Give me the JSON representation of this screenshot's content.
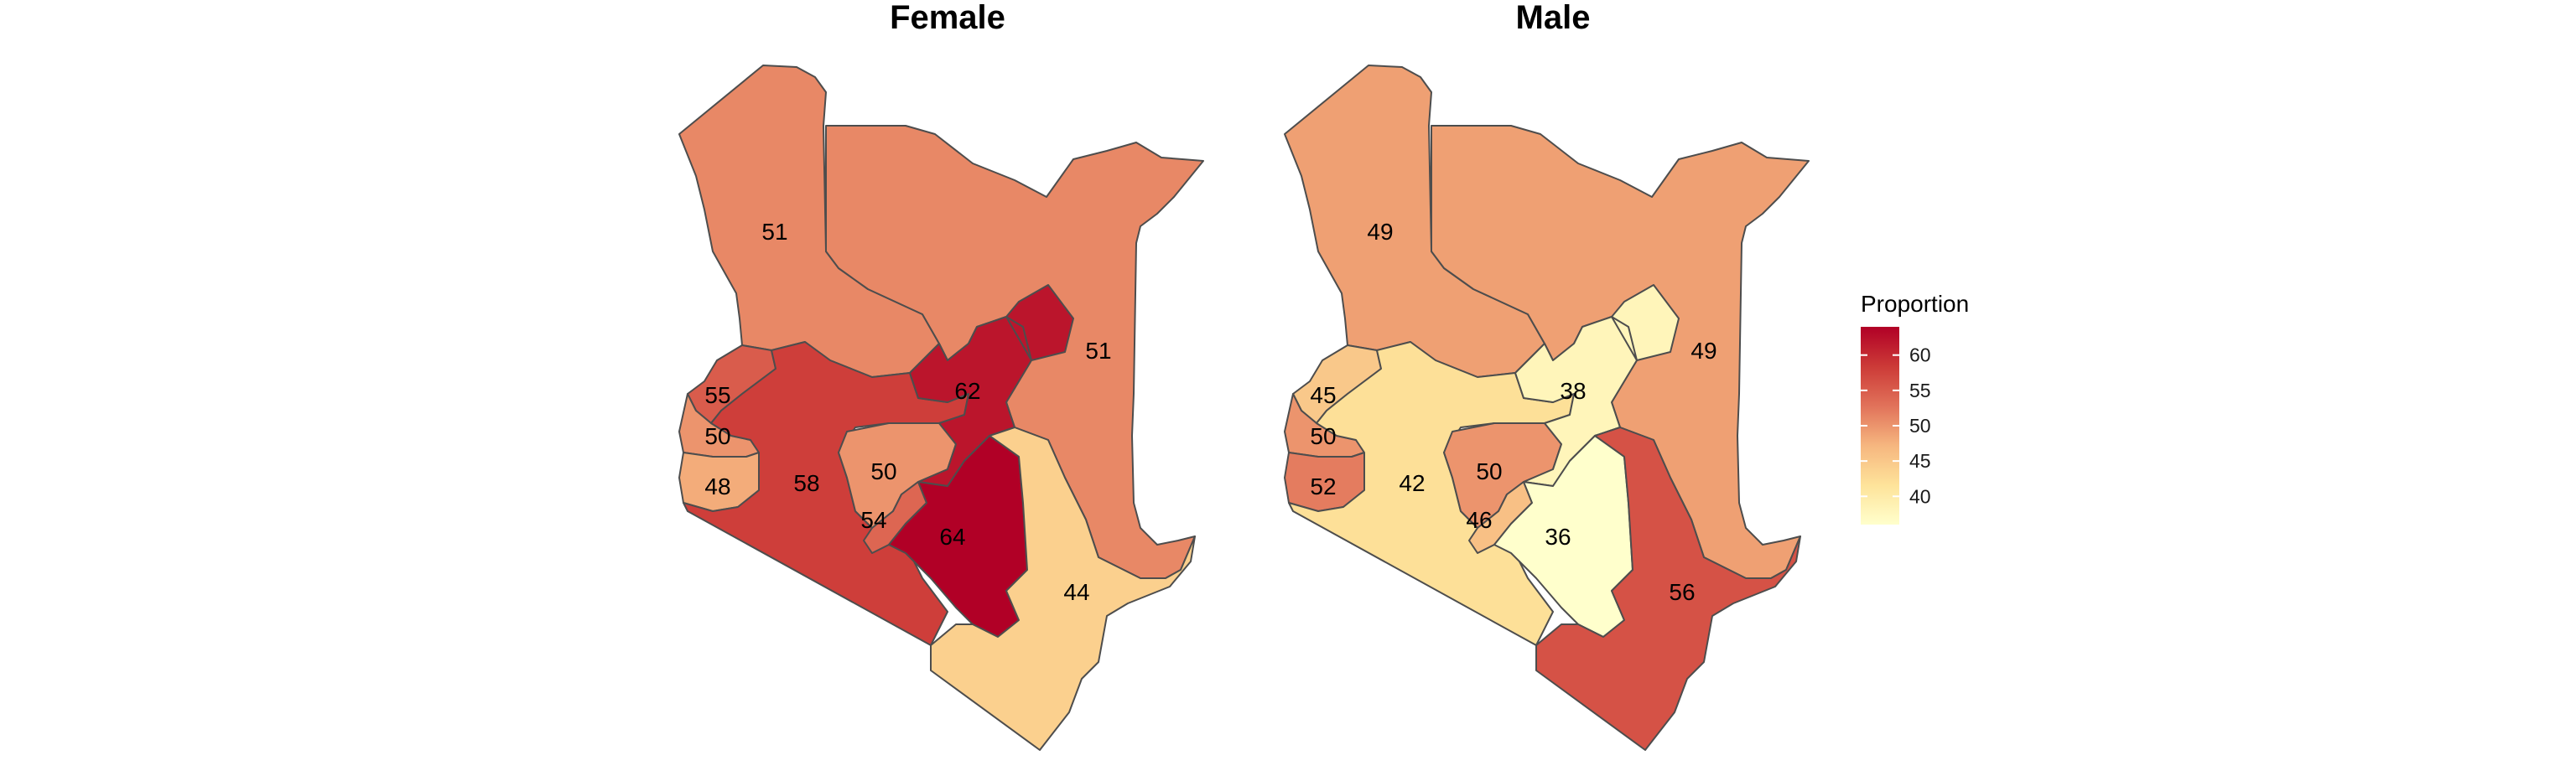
{
  "panels": {
    "female": {
      "title": "Female",
      "regions": {
        "nw": 51,
        "ne": 51,
        "w1": 55,
        "w2": 50,
        "w3": 48,
        "riftw": 58,
        "central": 50,
        "naivasha": 54,
        "eastern_n": 62,
        "nairobi_e": 64,
        "coast": 44
      }
    },
    "male": {
      "title": "Male",
      "regions": {
        "nw": 49,
        "ne": 49,
        "w1": 45,
        "w2": 50,
        "w3": 52,
        "riftw": 42,
        "central": 50,
        "naivasha": 46,
        "eastern_n": 38,
        "nairobi_e": 36,
        "coast": 56
      }
    }
  },
  "legend": {
    "title": "Proportion",
    "ticks": [
      "60",
      "55",
      "50",
      "45",
      "40"
    ],
    "tick_values": [
      60,
      55,
      50,
      45,
      40
    ],
    "range": [
      36,
      64
    ],
    "colors": [
      "#ffffcc",
      "#fed976",
      "#feb24c",
      "#fd8d3c",
      "#f03b20",
      "#bd0026"
    ],
    "low_color": "#ffffcc",
    "high_color": "#b10026"
  }
}
